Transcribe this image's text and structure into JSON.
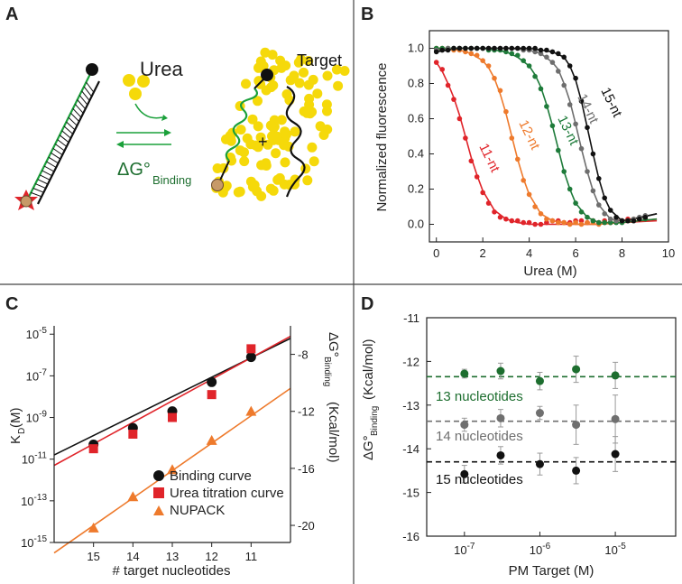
{
  "colors": {
    "green": "#2a8f3c",
    "orange": "#ee7a2c",
    "red": "#e0242a",
    "gray": "#6f6f6f",
    "black": "#111111",
    "yellow": "#f5d90a",
    "tan": "#c79a68",
    "dkgreen": "#1d6e2f",
    "c11": "#e0242a",
    "c12": "#ee7a2c",
    "c13": "#1e7b3a",
    "c14": "#6e6e6e",
    "c15": "#111111"
  },
  "panels": {
    "a": "A",
    "b": "B",
    "c": "C",
    "d": "D"
  },
  "schematic": {
    "urea_label": "Urea",
    "target_label": "Target",
    "plus": "+",
    "dg_main": "ΔG°",
    "dg_sub": "Binding"
  },
  "chart_data": [
    {
      "panel": "B",
      "type": "line",
      "xlabel": "Urea (M)",
      "ylabel": "Normalized fluorescence",
      "xlim": [
        -0.3,
        10
      ],
      "ylim": [
        -0.1,
        1.1
      ],
      "xticks": [
        "0",
        "2",
        "4",
        "6",
        "8",
        "10"
      ],
      "yticks": [
        "0.0",
        "0.2",
        "0.4",
        "0.6",
        "0.8",
        "1.0"
      ],
      "x": [
        0,
        0.25,
        0.5,
        0.75,
        1,
        1.25,
        1.5,
        1.75,
        2,
        2.25,
        2.5,
        2.75,
        3,
        3.25,
        3.5,
        3.75,
        4,
        4.25,
        4.5,
        4.75,
        5,
        5.25,
        5.5,
        5.75,
        6,
        6.25,
        6.5,
        6.75,
        7,
        7.25,
        7.5,
        7.75,
        8,
        8.25,
        8.5,
        8.75,
        9
      ],
      "series": [
        {
          "name": "11-nt",
          "label": "11-nt",
          "color_key": "c11",
          "mid": 1.05,
          "slope": 0.42,
          "drift": 0.02,
          "fit_x": [
            0,
            0.25,
            0.5,
            0.75,
            1,
            1.25,
            1.5,
            1.75,
            2,
            2.5,
            3,
            3.5,
            4,
            5,
            6,
            7,
            8,
            9.5
          ],
          "fit_y": [
            0.92,
            0.87,
            0.8,
            0.72,
            0.62,
            0.5,
            0.38,
            0.28,
            0.19,
            0.08,
            0.03,
            0.01,
            0.0,
            0.0,
            0.0,
            0.0,
            0.01,
            0.02
          ],
          "points_y": [
            0.92,
            0.88,
            0.79,
            0.71,
            0.6,
            0.49,
            0.36,
            0.27,
            0.18,
            0.12,
            0.07,
            0.04,
            0.03,
            0.02,
            0.02,
            0.01,
            0.01,
            0.0,
            0.0,
            0.01,
            0.02,
            0.02,
            0.01,
            0.01,
            0.02,
            0.02,
            0.01,
            0.02,
            0.01,
            0.02,
            0.01,
            0.02,
            0.02,
            0.03,
            0.02,
            0.03,
            0.03
          ]
        },
        {
          "name": "12-nt",
          "label": "12-nt",
          "color_key": "c12",
          "fit_x": [
            0,
            0.5,
            1,
            1.5,
            2,
            2.25,
            2.5,
            2.75,
            3,
            3.25,
            3.5,
            3.75,
            4,
            4.5,
            5,
            6,
            7,
            8,
            9.5
          ],
          "fit_y": [
            1.0,
            0.995,
            0.99,
            0.97,
            0.93,
            0.89,
            0.83,
            0.74,
            0.63,
            0.5,
            0.37,
            0.26,
            0.17,
            0.06,
            0.02,
            0.0,
            0.0,
            0.01,
            0.03
          ],
          "points_y": [
            1.0,
            1.0,
            1.0,
            0.99,
            0.99,
            0.98,
            0.97,
            0.96,
            0.93,
            0.9,
            0.83,
            0.76,
            0.64,
            0.49,
            0.37,
            0.25,
            0.17,
            0.1,
            0.06,
            0.03,
            0.02,
            0.01,
            0.01,
            0.0,
            0.01,
            0.0,
            0.01,
            0.01,
            0.0,
            0.01,
            0.01,
            0.02,
            0.02,
            0.02,
            0.03,
            0.03,
            0.03
          ]
        },
        {
          "name": "13-nt",
          "label": "13-nt",
          "color_key": "c13",
          "fit_x": [
            0,
            1,
            2,
            3,
            3.5,
            4,
            4.25,
            4.5,
            4.75,
            5,
            5.25,
            5.5,
            5.75,
            6,
            6.5,
            7,
            8,
            9.5
          ],
          "fit_y": [
            1.0,
            1.0,
            1.0,
            0.98,
            0.95,
            0.9,
            0.85,
            0.78,
            0.68,
            0.56,
            0.43,
            0.3,
            0.2,
            0.12,
            0.04,
            0.01,
            0.01,
            0.03
          ],
          "points_y": [
            1.0,
            1.0,
            1.0,
            1.0,
            1.0,
            1.0,
            1.0,
            1.0,
            1.0,
            0.99,
            0.99,
            0.99,
            0.98,
            0.97,
            0.96,
            0.93,
            0.9,
            0.84,
            0.77,
            0.67,
            0.56,
            0.42,
            0.3,
            0.2,
            0.12,
            0.07,
            0.04,
            0.02,
            0.01,
            0.01,
            0.01,
            0.01,
            0.01,
            0.02,
            0.02,
            0.03,
            0.03
          ]
        },
        {
          "name": "14-nt",
          "label": "14-nt",
          "color_key": "c14",
          "fit_x": [
            0,
            1,
            2,
            3,
            4,
            4.5,
            5,
            5.25,
            5.5,
            5.75,
            6,
            6.25,
            6.5,
            6.75,
            7,
            7.5,
            8,
            9.5
          ],
          "fit_y": [
            0.99,
            1.0,
            1.0,
            1.0,
            0.99,
            0.97,
            0.92,
            0.88,
            0.8,
            0.7,
            0.57,
            0.43,
            0.3,
            0.19,
            0.11,
            0.03,
            0.02,
            0.06
          ],
          "points_y": [
            0.99,
            0.99,
            1.0,
            1.0,
            1.0,
            1.0,
            1.0,
            1.0,
            1.0,
            1.0,
            1.0,
            1.0,
            1.0,
            1.0,
            1.0,
            0.99,
            0.99,
            0.98,
            0.97,
            0.95,
            0.92,
            0.87,
            0.79,
            0.68,
            0.57,
            0.43,
            0.3,
            0.19,
            0.11,
            0.06,
            0.03,
            0.02,
            0.02,
            0.02,
            0.03,
            0.04,
            0.05
          ]
        },
        {
          "name": "15-nt",
          "label": "15-nt",
          "color_key": "c15",
          "fit_x": [
            0,
            1,
            2,
            3,
            4,
            5,
            5.5,
            5.75,
            6,
            6.25,
            6.5,
            6.75,
            7,
            7.25,
            7.5,
            8,
            8.5,
            9.5
          ],
          "fit_y": [
            0.98,
            1.0,
            1.0,
            1.0,
            1.0,
            0.98,
            0.95,
            0.9,
            0.82,
            0.7,
            0.55,
            0.4,
            0.26,
            0.15,
            0.08,
            0.02,
            0.03,
            0.06
          ],
          "points_y": [
            0.98,
            0.99,
            0.99,
            1.0,
            1.0,
            1.0,
            1.0,
            1.0,
            1.0,
            1.0,
            1.0,
            1.0,
            1.0,
            1.0,
            1.0,
            1.0,
            1.0,
            1.0,
            0.99,
            0.99,
            0.98,
            0.97,
            0.95,
            0.9,
            0.83,
            0.7,
            0.55,
            0.4,
            0.26,
            0.15,
            0.08,
            0.04,
            0.02,
            0.02,
            0.02,
            0.03,
            0.04
          ]
        }
      ]
    },
    {
      "panel": "C",
      "type": "scatter",
      "xlabel": "# target nucleotides",
      "ylabel_main": "K",
      "ylabel_sub": "D",
      "ylabel_tail": "(M)",
      "y2label_main": "ΔG°",
      "y2label_sub": "Binding",
      "y2label_tail": "(Kcal/mol)",
      "xlim": [
        16,
        10
      ],
      "ylim_log10": [
        -15,
        -4.6
      ],
      "y2lim": [
        -21.2,
        -6.0
      ],
      "xticks": [
        "15",
        "14",
        "13",
        "12",
        "11"
      ],
      "xtick_values": [
        15,
        14,
        13,
        12,
        11
      ],
      "yticks": [
        {
          "exp": -5,
          "base": "10",
          "power": "-5"
        },
        {
          "exp": -7,
          "base": "10",
          "power": "-7"
        },
        {
          "exp": -9,
          "base": "10",
          "power": "-9"
        },
        {
          "exp": -11,
          "base": "10",
          "power": "-11"
        },
        {
          "exp": -13,
          "base": "10",
          "power": "-13"
        },
        {
          "exp": -15,
          "base": "10",
          "power": "-15"
        }
      ],
      "y2ticks": [
        {
          "value": -8,
          "label": "-8"
        },
        {
          "value": -12,
          "label": "-12"
        },
        {
          "value": -16,
          "label": "-16"
        },
        {
          "value": -20,
          "label": "-20"
        }
      ],
      "series": [
        {
          "name": "Binding curve",
          "marker": "circle",
          "color_key": "black",
          "x": [
            15,
            14,
            13,
            12,
            11
          ],
          "log10_kd": [
            -10.3,
            -9.5,
            -8.7,
            -7.3,
            -6.1
          ],
          "fit": [
            [
              16,
              -10.8
            ],
            [
              10,
              -5.2
            ]
          ]
        },
        {
          "name": "Urea titration curve",
          "marker": "square",
          "color_key": "red",
          "x": [
            15,
            14,
            13,
            12,
            11
          ],
          "log10_kd": [
            -10.5,
            -9.8,
            -9.0,
            -7.9,
            -5.7
          ],
          "fit": [
            [
              16,
              -11.3
            ],
            [
              10,
              -5.1
            ]
          ]
        },
        {
          "name": "NUPACK",
          "marker": "triangle",
          "color_key": "orange",
          "x": [
            15,
            14,
            13,
            12,
            11
          ],
          "log10_kd": [
            -14.3,
            -12.8,
            -11.5,
            -10.1,
            -8.7
          ],
          "fit": [
            [
              16,
              -15.5
            ],
            [
              10,
              -7.6
            ]
          ]
        }
      ]
    },
    {
      "panel": "D",
      "type": "scatter",
      "xlabel": "PM Target (M)",
      "ylabel_main": "ΔG°",
      "ylabel_sub": "Binding",
      "ylabel_tail": "(Kcal/mol)",
      "xlim_log10": [
        -7.5,
        -4.2
      ],
      "ylim": [
        -16,
        -11
      ],
      "xticks": [
        {
          "exp": -7,
          "base": "10",
          "power": "-7"
        },
        {
          "exp": -6,
          "base": "10",
          "power": "-6"
        },
        {
          "exp": -5,
          "base": "10",
          "power": "-5"
        }
      ],
      "yticks": [
        "-11",
        "-12",
        "-13",
        "-14",
        "-15",
        "-16"
      ],
      "ytick_values": [
        -11,
        -12,
        -13,
        -14,
        -15,
        -16
      ],
      "series": [
        {
          "name": "13 nucleotides",
          "color_key": "dkgreen",
          "mean": -12.35,
          "log10_conc": [
            -7,
            -6.52,
            -6,
            -5.52,
            -5
          ],
          "values": [
            -12.28,
            -12.22,
            -12.45,
            -12.18,
            -12.32
          ],
          "errors": [
            0.1,
            0.18,
            0.2,
            0.3,
            0.3
          ]
        },
        {
          "name": "14 nucleotides",
          "color_key": "gray",
          "mean": -13.37,
          "log10_conc": [
            -7,
            -6.52,
            -6,
            -5.52,
            -5
          ],
          "values": [
            -13.45,
            -13.3,
            -13.18,
            -13.45,
            -13.32
          ],
          "errors": [
            0.15,
            0.2,
            0.15,
            0.45,
            0.55
          ]
        },
        {
          "name": "15 nucleotides",
          "color_key": "black",
          "mean": -14.3,
          "log10_conc": [
            -7,
            -6.52,
            -6,
            -5.52,
            -5
          ],
          "values": [
            -14.58,
            -14.15,
            -14.35,
            -14.5,
            -14.12
          ],
          "errors": [
            0.2,
            0.2,
            0.25,
            0.3,
            0.4
          ]
        }
      ]
    }
  ]
}
